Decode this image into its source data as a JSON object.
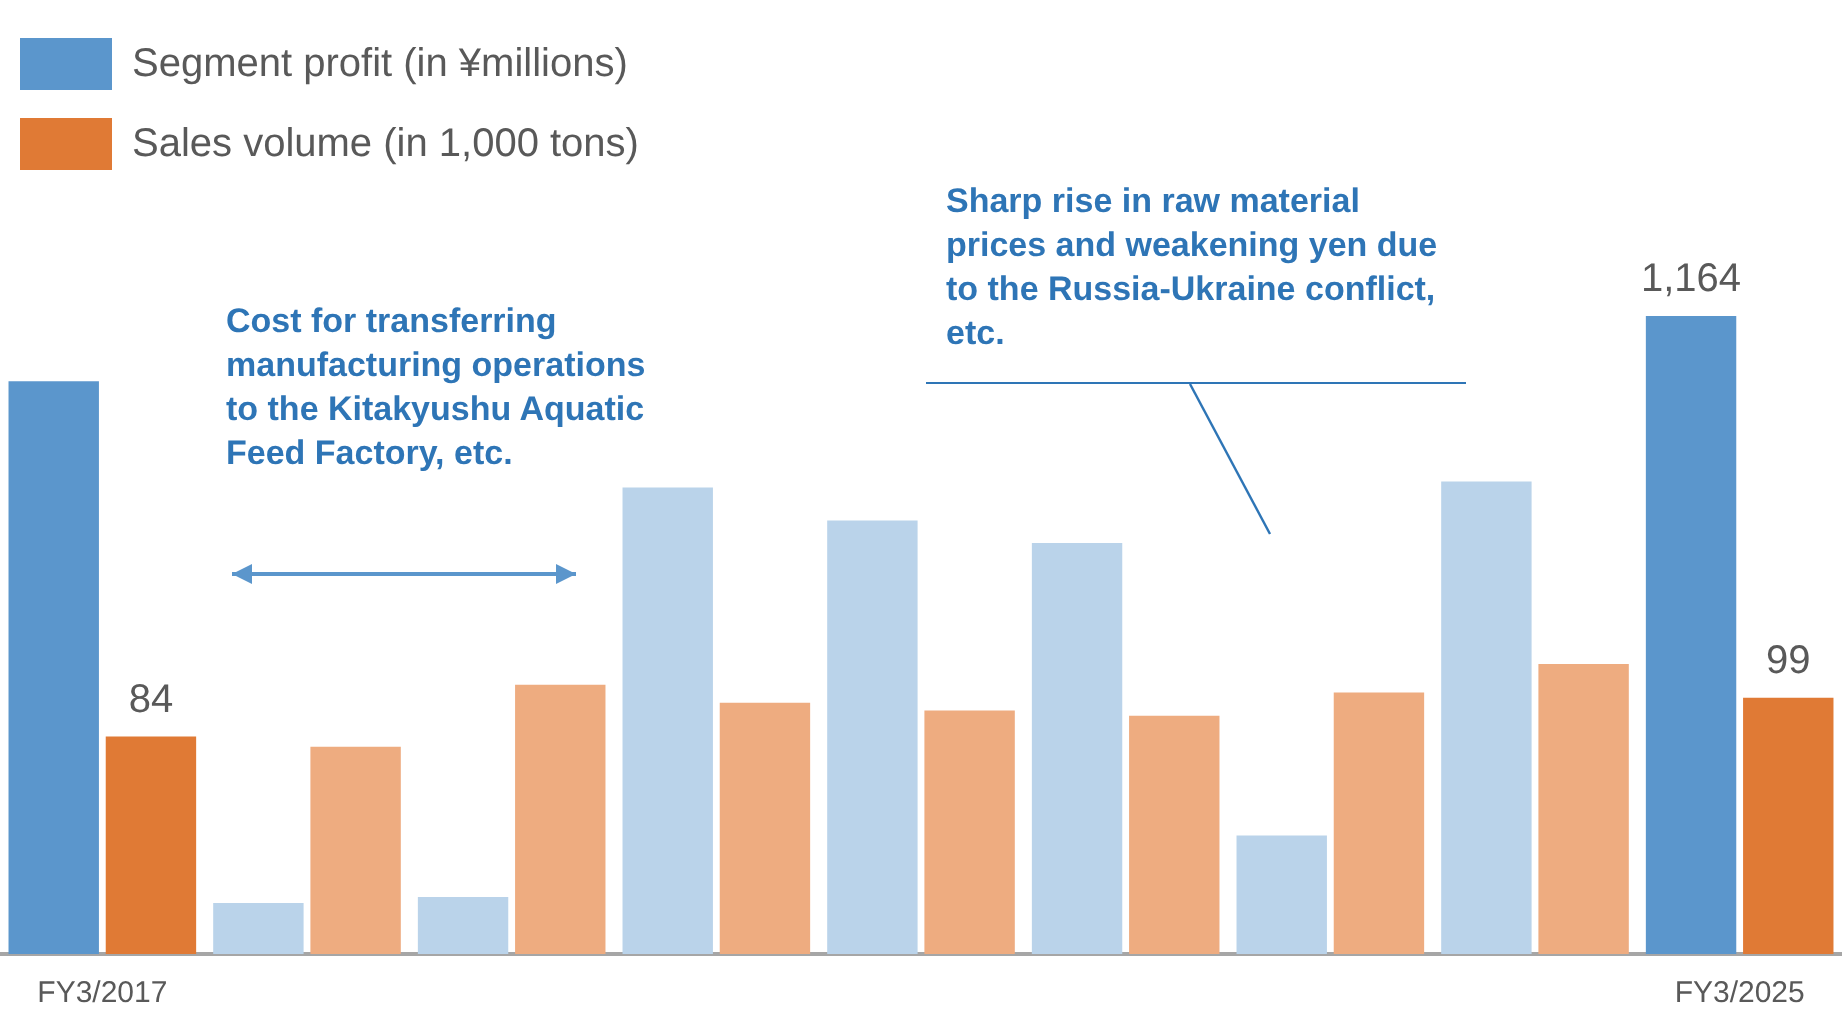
{
  "chart_data": {
    "type": "bar",
    "legend": "top left",
    "categories": [
      "FY3/2017",
      null,
      null,
      null,
      null,
      null,
      null,
      null,
      "FY3/2025"
    ],
    "series": [
      {
        "name": "Segment profit (in ¥millions)",
        "color": "#5b96cc",
        "colors": [
          "#5b96cc",
          "#bad3ea",
          "#bad3ea",
          "#bad3ea",
          "#bad3ea",
          "#bad3ea",
          "#bad3ea",
          "#bad3ea",
          "#5b96cc"
        ],
        "values": [
          1045,
          93,
          104,
          851,
          791,
          750,
          216,
          862,
          1164
        ],
        "value_labels": [
          null,
          null,
          null,
          null,
          null,
          null,
          null,
          null,
          "1,164"
        ]
      },
      {
        "name": "Sales volume (in 1,000 tons)",
        "color": "#e07a35",
        "colors": [
          "#e07a35",
          "#eeac80",
          "#eeac80",
          "#eeac80",
          "#eeac80",
          "#eeac80",
          "#eeac80",
          "#eeac80",
          "#e07a35"
        ],
        "axis": "y2",
        "values": [
          84,
          80,
          104,
          97,
          94,
          92,
          101,
          112,
          99
        ],
        "value_labels": [
          "84",
          null,
          null,
          null,
          null,
          null,
          null,
          null,
          "99"
        ]
      }
    ],
    "annotations": [
      "Cost for transferring manufacturing operations to the Kitakyushu Aquatic Feed Factory, etc.",
      "Sharp rise in raw material prices and weakening yen due to the Russia-Ukraine conflict, etc."
    ]
  }
}
